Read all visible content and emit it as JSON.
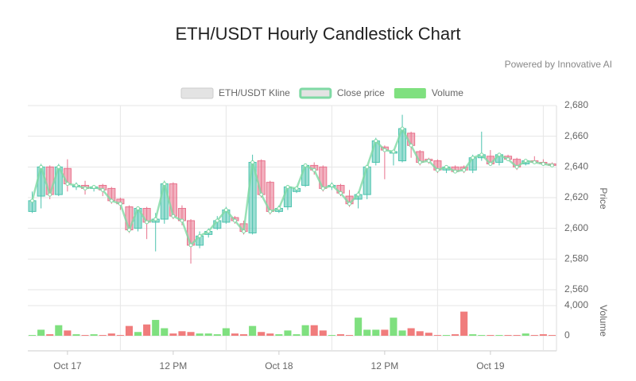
{
  "chart_data": {
    "type": "candlestick",
    "title": "ETH/USDT Hourly Candlestick Chart",
    "subtitle": "Powered by Innovative AI",
    "ylabel": "Price",
    "y2label": "Volume",
    "categories": [
      null,
      null,
      null,
      null,
      "Oct 17",
      null,
      null,
      null,
      null,
      null,
      null,
      null,
      null,
      null,
      null,
      null,
      "12 PM",
      null,
      null,
      null,
      null,
      null,
      null,
      null,
      null,
      null,
      null,
      null,
      "Oct 18",
      null,
      null,
      null,
      null,
      null,
      null,
      null,
      null,
      null,
      null,
      null,
      "12 PM",
      null,
      null,
      null,
      null,
      null,
      null,
      null,
      null,
      null,
      null,
      null,
      "Oct 19",
      null,
      null,
      null,
      null,
      null,
      null,
      null
    ],
    "ylim": [
      2560,
      2680
    ],
    "yticks": [
      {
        "value": 2560,
        "label": "2,560"
      },
      {
        "value": 2580,
        "label": "2,580"
      },
      {
        "value": 2600,
        "label": "2,600"
      },
      {
        "value": 2620,
        "label": "2,620"
      },
      {
        "value": 2640,
        "label": "2,640"
      },
      {
        "value": 2660,
        "label": "2,660"
      },
      {
        "value": 2680,
        "label": "2,680"
      }
    ],
    "y2lim": [
      -2000,
      4000
    ],
    "y2ticks": [
      0,
      {
        "value": 4000,
        "label": "4,000"
      }
    ],
    "grid": true,
    "legend": "top",
    "series": [
      {
        "name": "ETH/USDT Kline",
        "color": "#e3e3e3",
        "up_color": "#4cc3ae",
        "down_color": "#e8728c",
        "open": [
          2611,
          2621,
          2640,
          2622,
          2639,
          2627,
          2628,
          2626,
          2628,
          2626,
          2619,
          2614,
          2600,
          2613,
          2604,
          2606,
          2629,
          2613,
          2605,
          2589,
          2596,
          2600,
          2604,
          2607,
          2603,
          2597,
          2644,
          2630,
          2611,
          2614,
          2624,
          2628,
          2641,
          2640,
          2627,
          2628,
          2621,
          2619,
          2622,
          2643,
          2653,
          2649,
          2644,
          2662,
          2650,
          2645,
          2644,
          2638,
          2640,
          2640,
          2638,
          2646,
          2647,
          2643,
          2647,
          2645,
          2642,
          2644,
          2643,
          2642
        ],
        "high": [
          2624,
          2642,
          2641,
          2642,
          2645,
          2630,
          2631,
          2628,
          2629,
          2627,
          2620,
          2615,
          2614,
          2614,
          2610,
          2631,
          2630,
          2615,
          2606,
          2598,
          2600,
          2608,
          2614,
          2608,
          2605,
          2648,
          2645,
          2631,
          2615,
          2628,
          2627,
          2642,
          2643,
          2641,
          2630,
          2629,
          2625,
          2624,
          2641,
          2659,
          2654,
          2651,
          2674,
          2663,
          2651,
          2646,
          2645,
          2641,
          2641,
          2641,
          2648,
          2663,
          2651,
          2649,
          2648,
          2646,
          2645,
          2647,
          2645,
          2643
        ],
        "low": [
          2610,
          2613,
          2619,
          2621,
          2624,
          2625,
          2622,
          2624,
          2621,
          2616,
          2612,
          2597,
          2598,
          2593,
          2585,
          2603,
          2606,
          2602,
          2577,
          2587,
          2594,
          2599,
          2603,
          2603,
          2596,
          2596,
          2620,
          2609,
          2610,
          2612,
          2623,
          2627,
          2635,
          2624,
          2625,
          2621,
          2614,
          2613,
          2619,
          2641,
          2632,
          2641,
          2643,
          2646,
          2641,
          2642,
          2636,
          2636,
          2636,
          2636,
          2636,
          2644,
          2641,
          2641,
          2644,
          2638,
          2641,
          2642,
          2641,
          2640
        ],
        "close": [
          2618,
          2640,
          2622,
          2640,
          2629,
          2628,
          2626,
          2627,
          2625,
          2618,
          2616,
          2599,
          2613,
          2604,
          2606,
          2629,
          2608,
          2605,
          2589,
          2595,
          2598,
          2605,
          2612,
          2605,
          2598,
          2643,
          2622,
          2611,
          2613,
          2627,
          2626,
          2641,
          2638,
          2626,
          2628,
          2623,
          2616,
          2622,
          2640,
          2657,
          2651,
          2650,
          2665,
          2654,
          2643,
          2644,
          2638,
          2640,
          2637,
          2638,
          2646,
          2648,
          2642,
          2648,
          2645,
          2640,
          2644,
          2643,
          2642,
          2641
        ]
      },
      {
        "name": "Close price",
        "color": "#7fd9a4"
      },
      {
        "name": "Volume",
        "color": "#7fe07f",
        "axis": "y2",
        "values": [
          100,
          800,
          200,
          1400,
          700,
          200,
          100,
          200,
          100,
          300,
          100,
          1300,
          500,
          1500,
          2100,
          1000,
          300,
          600,
          500,
          300,
          300,
          200,
          1000,
          300,
          200,
          1300,
          500,
          300,
          200,
          700,
          200,
          1400,
          1400,
          700,
          100,
          200,
          100,
          2400,
          800,
          800,
          800,
          2400,
          700,
          1000,
          600,
          400,
          100,
          100,
          200,
          3200,
          200,
          100,
          100,
          100,
          100,
          100,
          300,
          100,
          200,
          100
        ]
      }
    ]
  }
}
